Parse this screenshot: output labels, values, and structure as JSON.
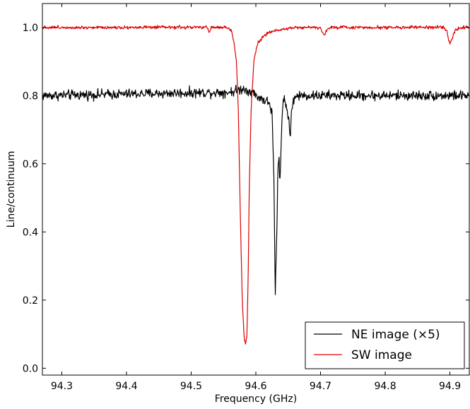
{
  "chart_data": {
    "type": "line",
    "title": "",
    "xlabel": "Frequency (GHz)",
    "ylabel": "Line/continuum",
    "xlim": [
      94.27,
      94.93
    ],
    "ylim": [
      -0.02,
      1.07
    ],
    "xticks": [
      94.3,
      94.4,
      94.5,
      94.6,
      94.7,
      94.8,
      94.9
    ],
    "xtick_labels": [
      "94.3",
      "94.4",
      "94.5",
      "94.6",
      "94.7",
      "94.8",
      "94.9"
    ],
    "yticks": [
      0.0,
      0.2,
      0.4,
      0.6,
      0.8,
      1.0
    ],
    "ytick_labels": [
      "0.0",
      "0.2",
      "0.4",
      "0.6",
      "0.8",
      "1.0"
    ],
    "grid": false,
    "legend_position": "bottom-right",
    "series": [
      {
        "name": "NE image (×5)",
        "color": "#000000",
        "baseline": 0.805,
        "noise": 0.012,
        "points": [
          [
            94.27,
            0.8
          ],
          [
            94.56,
            0.81
          ],
          [
            94.58,
            0.82
          ],
          [
            94.595,
            0.81
          ],
          [
            94.6,
            0.8
          ],
          [
            94.61,
            0.79
          ],
          [
            94.62,
            0.78
          ],
          [
            94.625,
            0.75
          ],
          [
            94.628,
            0.55
          ],
          [
            94.629,
            0.38
          ],
          [
            94.63,
            0.21
          ],
          [
            94.631,
            0.3
          ],
          [
            94.632,
            0.35
          ],
          [
            94.634,
            0.58
          ],
          [
            94.636,
            0.62
          ],
          [
            94.637,
            0.53
          ],
          [
            94.639,
            0.65
          ],
          [
            94.641,
            0.77
          ],
          [
            94.644,
            0.79
          ],
          [
            94.648,
            0.76
          ],
          [
            94.651,
            0.73
          ],
          [
            94.653,
            0.68
          ],
          [
            94.655,
            0.74
          ],
          [
            94.658,
            0.79
          ],
          [
            94.665,
            0.8
          ],
          [
            94.93,
            0.8
          ]
        ]
      },
      {
        "name": "SW image",
        "color": "#dd0000",
        "baseline": 1.0,
        "noise": 0.004,
        "points": [
          [
            94.27,
            1.0
          ],
          [
            94.525,
            1.0
          ],
          [
            94.528,
            0.985
          ],
          [
            94.531,
            1.0
          ],
          [
            94.555,
            1.0
          ],
          [
            94.562,
            0.99
          ],
          [
            94.566,
            0.96
          ],
          [
            94.57,
            0.9
          ],
          [
            94.573,
            0.75
          ],
          [
            94.576,
            0.45
          ],
          [
            94.579,
            0.2
          ],
          [
            94.582,
            0.09
          ],
          [
            94.584,
            0.07
          ],
          [
            94.586,
            0.09
          ],
          [
            94.588,
            0.25
          ],
          [
            94.59,
            0.55
          ],
          [
            94.593,
            0.78
          ],
          [
            94.597,
            0.9
          ],
          [
            94.602,
            0.95
          ],
          [
            94.61,
            0.97
          ],
          [
            94.62,
            0.985
          ],
          [
            94.64,
            0.995
          ],
          [
            94.66,
            1.0
          ],
          [
            94.7,
            1.0
          ],
          [
            94.703,
            0.985
          ],
          [
            94.706,
            0.975
          ],
          [
            94.709,
            0.99
          ],
          [
            94.715,
            1.0
          ],
          [
            94.89,
            1.0
          ],
          [
            94.895,
            0.99
          ],
          [
            94.898,
            0.96
          ],
          [
            94.901,
            0.955
          ],
          [
            94.904,
            0.97
          ],
          [
            94.908,
            0.99
          ],
          [
            94.915,
            1.0
          ],
          [
            94.93,
            1.0
          ]
        ]
      }
    ],
    "legend": [
      {
        "label": "NE image (×5)",
        "color": "#000000"
      },
      {
        "label": "SW image",
        "color": "#dd0000"
      }
    ]
  }
}
